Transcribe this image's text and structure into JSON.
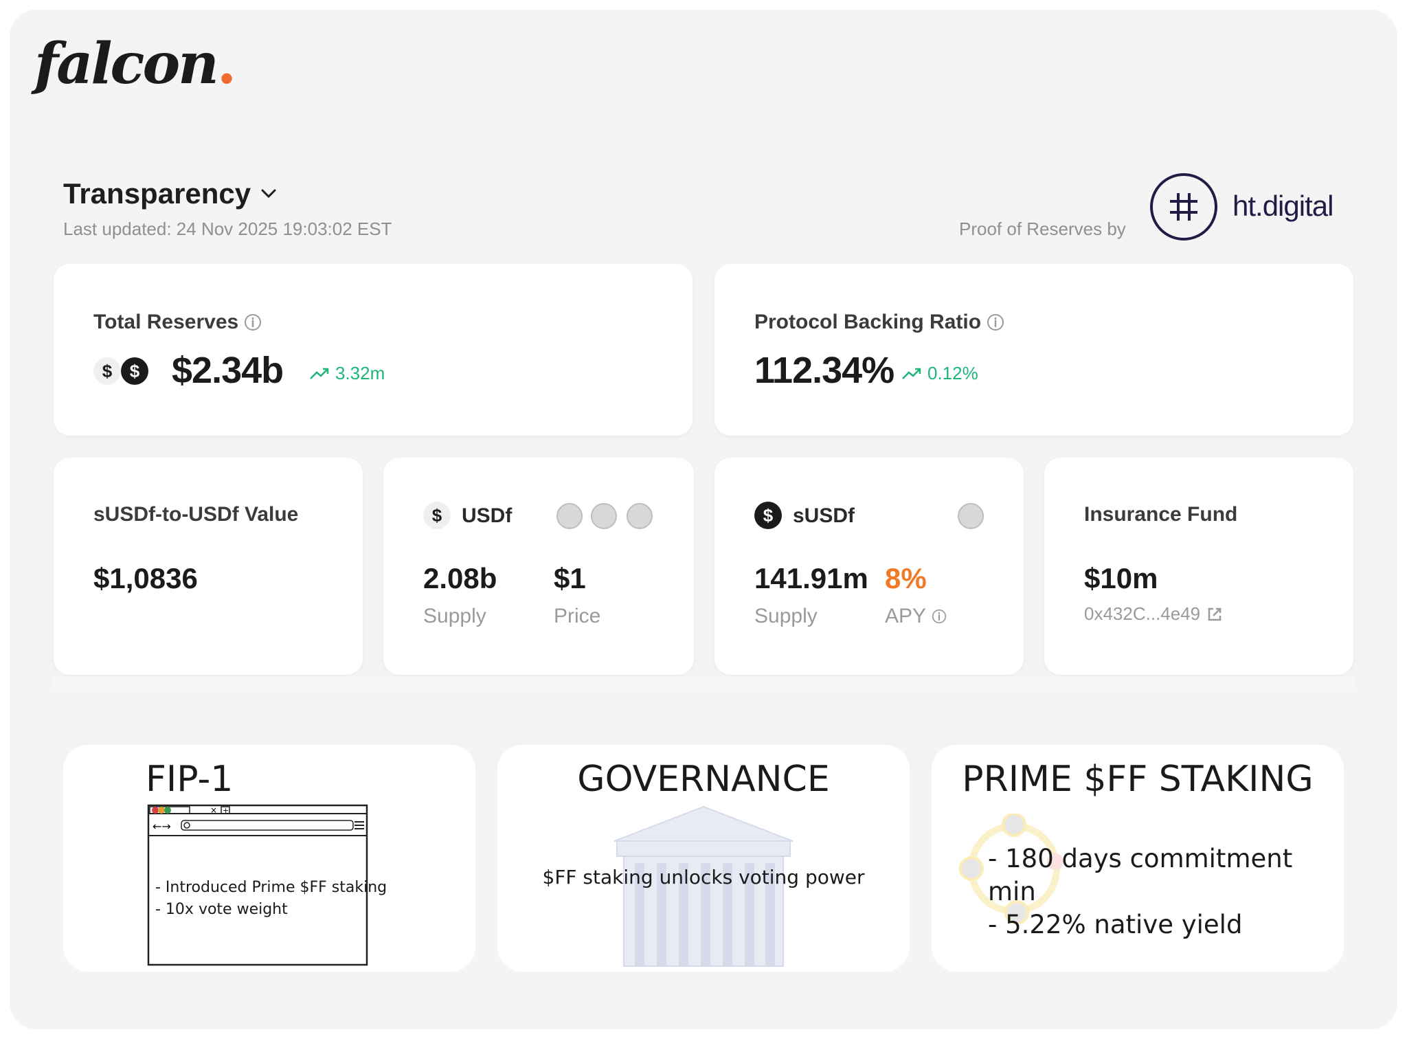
{
  "brand": {
    "name": "falcon",
    "dot": "."
  },
  "header": {
    "title": "Transparency",
    "last_updated": "Last updated: 24 Nov 2025 19:03:02 EST",
    "proof_label": "Proof of Reserves by",
    "proof_provider": "ht.digital"
  },
  "reserves": {
    "label": "Total Reserves",
    "value": "$2.34b",
    "delta": "3.32m"
  },
  "backing": {
    "label": "Protocol Backing Ratio",
    "value": "112.34%",
    "delta": "0.12%"
  },
  "susdf_value": {
    "label": "sUSDf-to-USDf Value",
    "value": "$1,0836"
  },
  "usdf": {
    "name": "USDf",
    "supply": "2.08b",
    "supply_label": "Supply",
    "price": "$1",
    "price_label": "Price"
  },
  "susdf": {
    "name": "sUSDf",
    "supply": "141.91m",
    "supply_label": "Supply",
    "apy": "8%",
    "apy_label": "APY"
  },
  "insurance": {
    "label": "Insurance Fund",
    "value": "$10m",
    "address": "0x432C...4e49"
  },
  "promos": {
    "fip": {
      "title": "FIP-1",
      "line1": "- Introduced Prime $FF staking",
      "line2": "-  10x vote weight"
    },
    "governance": {
      "title": "GOVERNANCE",
      "text": "$FF staking unlocks voting power"
    },
    "staking": {
      "title": "PRIME $FF STAKING",
      "line1": "- 180 days commitment min",
      "line2": "- 5.22% native yield"
    }
  },
  "colors": {
    "accent_orange": "#f26b2e",
    "positive_green": "#1fb57a",
    "ht_navy": "#1f1d45"
  }
}
